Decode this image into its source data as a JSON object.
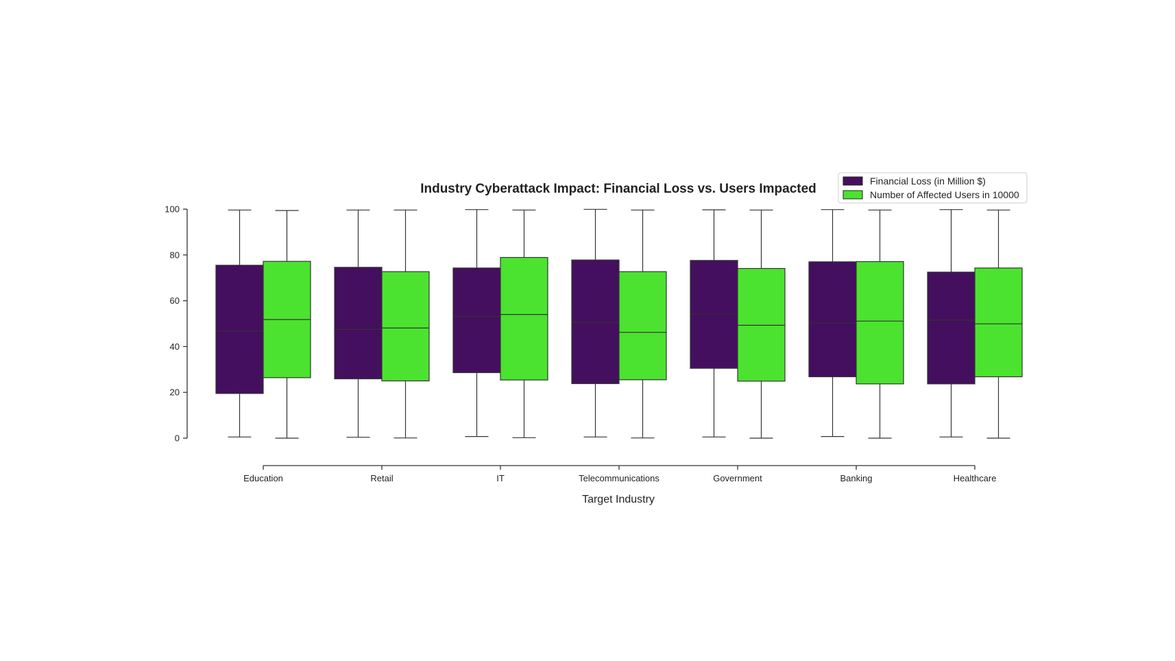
{
  "chart_data": {
    "type": "box",
    "title": "Industry Cyberattack Impact: Financial Loss vs. Users Impacted",
    "xlabel": "Target Industry",
    "ylabel": "",
    "ylim": [
      0,
      100
    ],
    "yticks": [
      0,
      20,
      40,
      60,
      80,
      100
    ],
    "categories": [
      "Education",
      "Retail",
      "IT",
      "Telecommunications",
      "Government",
      "Banking",
      "Healthcare"
    ],
    "legend_position": "top-right",
    "grid": false,
    "series": [
      {
        "name": "Financial Loss (in Million $)",
        "color": "#440f5e",
        "boxes": [
          {
            "min": 0.5,
            "q1": 19.5,
            "median": 46.8,
            "q3": 75.5,
            "max": 99.6
          },
          {
            "min": 0.4,
            "q1": 25.9,
            "median": 47.5,
            "q3": 74.6,
            "max": 99.6
          },
          {
            "min": 0.7,
            "q1": 28.6,
            "median": 53.1,
            "q3": 74.3,
            "max": 99.8
          },
          {
            "min": 0.5,
            "q1": 23.8,
            "median": 50.6,
            "q3": 77.8,
            "max": 99.9
          },
          {
            "min": 0.5,
            "q1": 30.5,
            "median": 54.1,
            "q3": 77.6,
            "max": 99.7
          },
          {
            "min": 0.7,
            "q1": 26.8,
            "median": 50.4,
            "q3": 77.0,
            "max": 99.8
          },
          {
            "min": 0.5,
            "q1": 23.7,
            "median": 51.5,
            "q3": 72.5,
            "max": 99.8
          }
        ]
      },
      {
        "name": "Number of Affected Users in 10000",
        "color": "#4be32f",
        "boxes": [
          {
            "min": 0.0,
            "q1": 26.4,
            "median": 51.8,
            "q3": 77.2,
            "max": 99.4
          },
          {
            "min": 0.1,
            "q1": 25.0,
            "median": 48.1,
            "q3": 72.7,
            "max": 99.6
          },
          {
            "min": 0.2,
            "q1": 25.4,
            "median": 54.0,
            "q3": 78.9,
            "max": 99.6
          },
          {
            "min": 0.1,
            "q1": 25.5,
            "median": 46.2,
            "q3": 72.7,
            "max": 99.6
          },
          {
            "min": 0.0,
            "q1": 24.9,
            "median": 49.3,
            "q3": 74.1,
            "max": 99.6
          },
          {
            "min": 0.0,
            "q1": 23.7,
            "median": 51.1,
            "q3": 77.1,
            "max": 99.6
          },
          {
            "min": 0.0,
            "q1": 26.8,
            "median": 49.9,
            "q3": 74.3,
            "max": 99.6
          }
        ]
      }
    ]
  }
}
